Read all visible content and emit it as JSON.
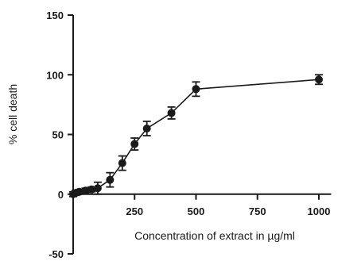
{
  "chart_data": {
    "type": "line",
    "title": "",
    "xlabel": "Concentration of extract in µg/ml",
    "ylabel": "% cell death",
    "xlim": [
      0,
      1050
    ],
    "ylim": [
      -50,
      150
    ],
    "x_ticks": [
      250,
      500,
      750,
      1000
    ],
    "x_tick_labels": [
      "250",
      "500",
      "750",
      "1000"
    ],
    "y_ticks": [
      -50,
      0,
      50,
      100,
      150
    ],
    "y_tick_labels": [
      "-50",
      "0",
      "50",
      "100",
      "150"
    ],
    "grid": false,
    "series": [
      {
        "x": [
          0,
          10,
          25,
          50,
          75,
          100,
          150,
          200,
          250,
          300,
          400,
          500,
          1000
        ],
        "y": [
          0,
          1,
          2,
          3,
          4,
          5,
          12,
          26,
          42,
          55,
          68,
          88,
          96
        ],
        "error": [
          2,
          2,
          2,
          2,
          2,
          5,
          6,
          6,
          5,
          6,
          5,
          6,
          4
        ]
      }
    ],
    "color": "#1a1a1a"
  }
}
